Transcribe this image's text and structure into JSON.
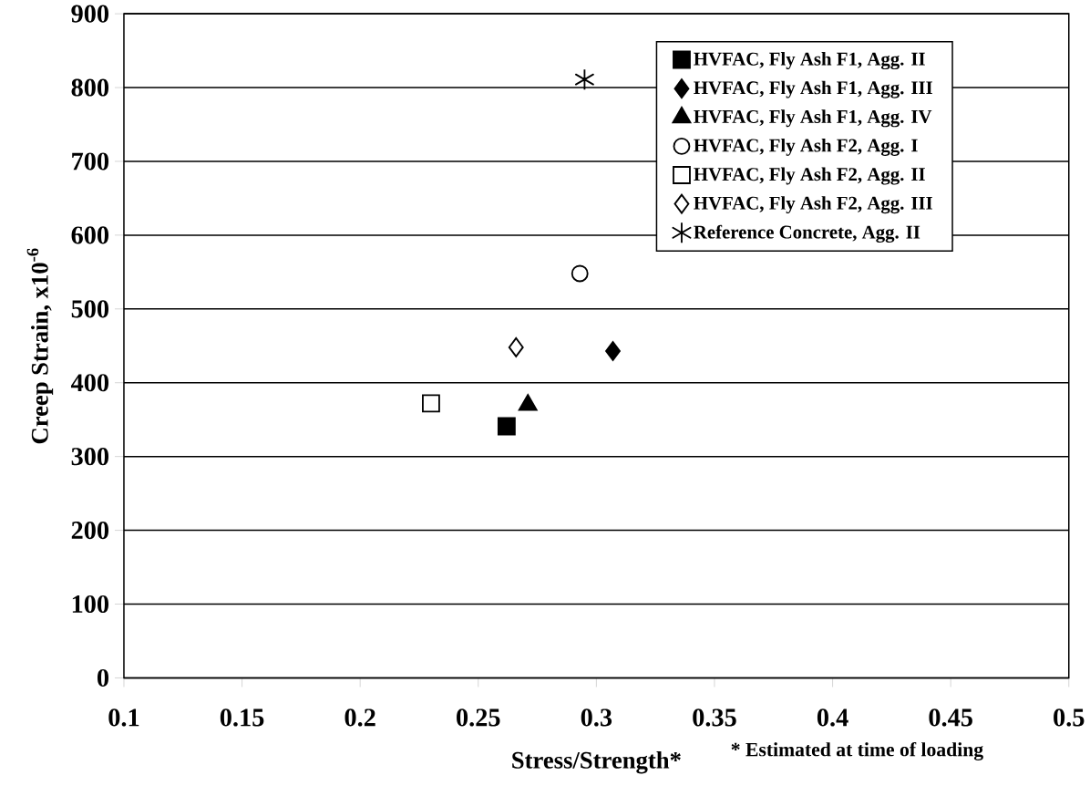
{
  "chart_data": {
    "type": "scatter",
    "xlabel": "Stress/Strength*",
    "ylabel": "Creep Strain, x10$^{-6}$",
    "annotations": [
      "* Estimated at time of loading"
    ],
    "xlim": [
      0.1,
      0.5
    ],
    "ylim": [
      0,
      900
    ],
    "xticks": [
      0.1,
      0.15,
      0.2,
      0.25,
      0.3,
      0.35,
      0.4,
      0.45,
      0.5
    ],
    "yticks": [
      0,
      100,
      200,
      300,
      400,
      500,
      600,
      700,
      800,
      900
    ],
    "grid": "y",
    "legend": "top right",
    "series": [
      {
        "name": "HVFAC, Fly Ash F1, Agg. II",
        "color": "#000000",
        "marker": "square",
        "x": [
          0.262
        ],
        "values": [
          341
        ]
      },
      {
        "name": "HVFAC, Fly Ash F1, Agg. III",
        "color": "#000000",
        "marker": "diamond",
        "x": [
          0.307
        ],
        "values": [
          443
        ]
      },
      {
        "name": "HVFAC, Fly Ash F1, Agg. IV",
        "color": "#000000",
        "marker": "triangle",
        "x": [
          0.271
        ],
        "values": [
          370
        ]
      },
      {
        "name": "HVFAC, Fly Ash F2, Agg. I",
        "color": "#000000",
        "marker": "circle",
        "x": [
          0.293
        ],
        "values": [
          548
        ]
      },
      {
        "name": "HVFAC, Fly Ash F2, Agg. II",
        "color": "#000000",
        "marker": "square",
        "x": [
          0.23
        ],
        "values": [
          372
        ]
      },
      {
        "name": "HVFAC, Fly Ash F2, Agg. III",
        "color": "#000000",
        "marker": "diamond",
        "x": [
          0.266
        ],
        "values": [
          448
        ]
      },
      {
        "name": "Reference Concrete, Agg. II",
        "color": "#000000",
        "marker": "cross",
        "x": [
          0.295
        ],
        "values": [
          811
        ]
      }
    ]
  }
}
